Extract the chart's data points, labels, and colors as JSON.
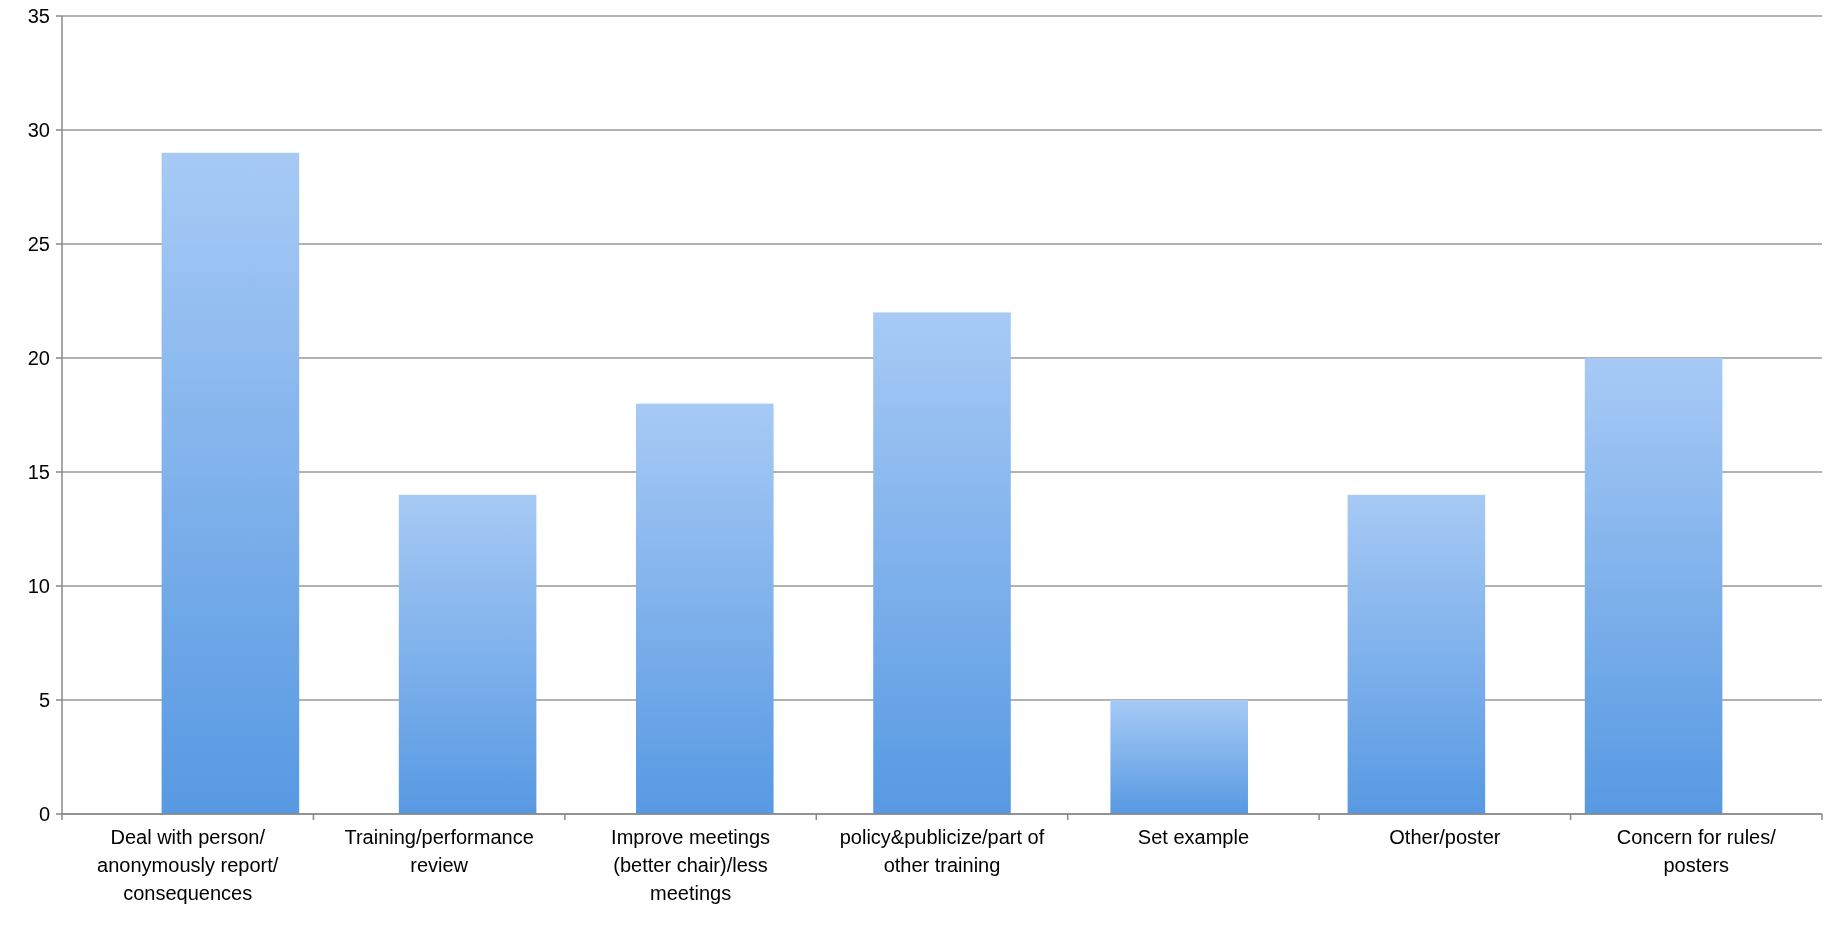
{
  "chart_data": {
    "type": "bar",
    "categories": [
      "Deal with person/ anonymously report/ consequences",
      "Training/performance review",
      "Improve meetings (better chair)/less meetings",
      "policy&publicize/part of other training",
      "Set example",
      "Other/poster",
      "Concern for rules/ posters"
    ],
    "values": [
      29,
      14,
      18,
      22,
      5,
      14,
      20
    ],
    "color": "#78aef0",
    "ylim": [
      0,
      35
    ],
    "yticks": [
      0,
      5,
      10,
      15,
      20,
      25,
      30,
      35
    ],
    "grid": "y"
  }
}
